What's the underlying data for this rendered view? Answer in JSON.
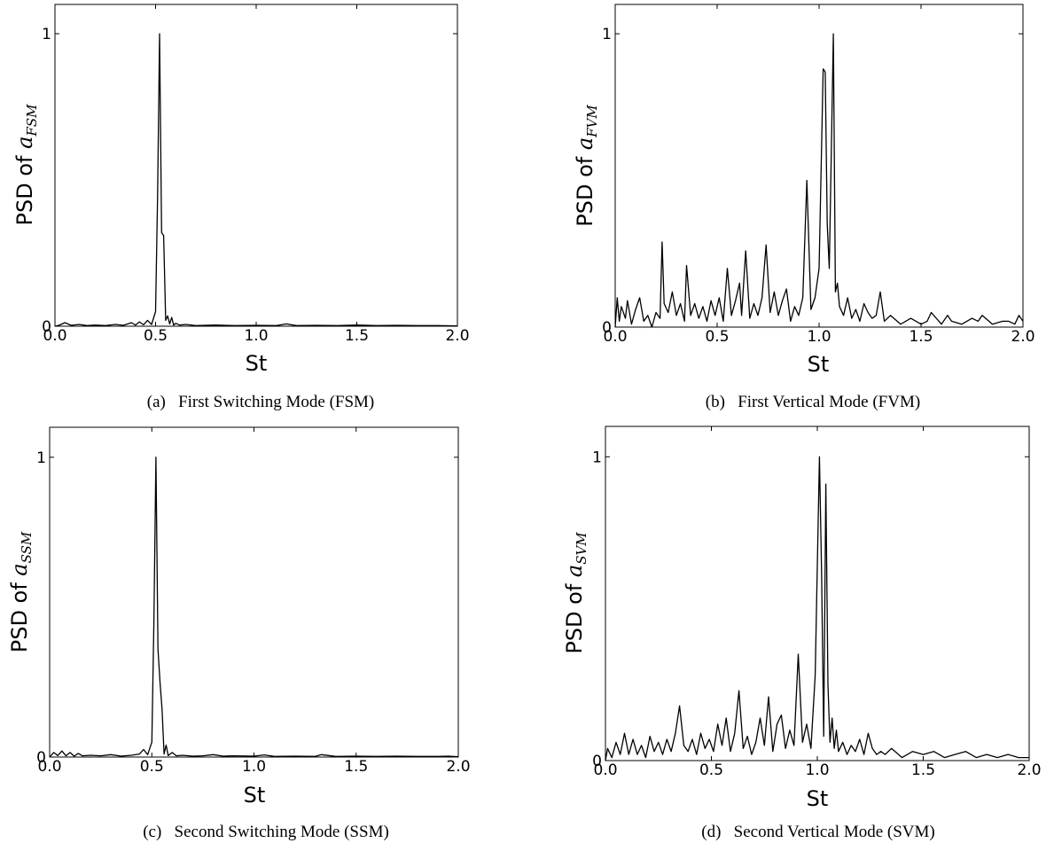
{
  "chart_data": [
    {
      "id": "a",
      "type": "line",
      "caption": "(a)   First Switching Mode (FSM)",
      "xlabel": "St",
      "ylabel_main": "PSD of ",
      "ylabel_var": "a",
      "ylabel_sub": "FSM",
      "xlim": [
        0.0,
        2.0
      ],
      "ylim": [
        0,
        1.1
      ],
      "xticks": [
        "0.0",
        "0.5",
        "1.0",
        "1.5",
        "2.0"
      ],
      "yticks": [
        "0",
        "1"
      ],
      "series": [
        {
          "x": [
            0.0,
            0.02,
            0.05,
            0.08,
            0.12,
            0.16,
            0.2,
            0.25,
            0.3,
            0.34,
            0.38,
            0.4,
            0.42,
            0.44,
            0.46,
            0.48,
            0.5,
            0.51,
            0.52,
            0.53,
            0.54,
            0.55,
            0.56,
            0.57,
            0.58,
            0.59,
            0.6,
            0.62,
            0.65,
            0.7,
            0.8,
            0.9,
            1.0,
            1.1,
            1.15,
            1.2,
            1.3,
            1.4,
            1.5,
            1.6,
            1.7,
            1.8,
            1.9,
            2.0
          ],
          "y": [
            0.0,
            0.003,
            0.012,
            0.003,
            0.006,
            0.002,
            0.004,
            0.002,
            0.006,
            0.003,
            0.012,
            0.004,
            0.015,
            0.005,
            0.02,
            0.006,
            0.05,
            0.45,
            1.0,
            0.32,
            0.31,
            0.02,
            0.035,
            0.008,
            0.03,
            0.004,
            0.01,
            0.004,
            0.006,
            0.002,
            0.004,
            0.002,
            0.003,
            0.002,
            0.008,
            0.002,
            0.003,
            0.002,
            0.004,
            0.002,
            0.003,
            0.002,
            0.002,
            0.001
          ]
        }
      ]
    },
    {
      "id": "b",
      "type": "line",
      "caption": "(b)   First Vertical Mode (FVM)",
      "xlabel": "St",
      "ylabel_main": "PSD of ",
      "ylabel_var": "a",
      "ylabel_sub": "FVM",
      "xlim": [
        0.0,
        2.0
      ],
      "ylim": [
        0,
        1.1
      ],
      "xticks": [
        "0.0",
        "0.5",
        "1.0",
        "1.5",
        "2.0"
      ],
      "yticks": [
        "0",
        "1"
      ],
      "series": [
        {
          "x": [
            0.0,
            0.01,
            0.02,
            0.03,
            0.05,
            0.06,
            0.08,
            0.1,
            0.12,
            0.14,
            0.16,
            0.18,
            0.2,
            0.22,
            0.23,
            0.24,
            0.26,
            0.28,
            0.3,
            0.32,
            0.34,
            0.35,
            0.37,
            0.39,
            0.41,
            0.43,
            0.45,
            0.47,
            0.49,
            0.51,
            0.53,
            0.55,
            0.57,
            0.59,
            0.61,
            0.62,
            0.64,
            0.66,
            0.68,
            0.7,
            0.72,
            0.74,
            0.76,
            0.78,
            0.8,
            0.82,
            0.84,
            0.86,
            0.88,
            0.9,
            0.92,
            0.94,
            0.96,
            0.98,
            1.0,
            1.02,
            1.03,
            1.04,
            1.05,
            1.06,
            1.07,
            1.08,
            1.09,
            1.1,
            1.12,
            1.14,
            1.16,
            1.18,
            1.2,
            1.22,
            1.24,
            1.26,
            1.28,
            1.3,
            1.32,
            1.35,
            1.4,
            1.45,
            1.5,
            1.53,
            1.55,
            1.6,
            1.63,
            1.65,
            1.7,
            1.75,
            1.78,
            1.8,
            1.85,
            1.9,
            1.93,
            1.96,
            1.98,
            2.0
          ],
          "y": [
            0.0,
            0.1,
            0.02,
            0.07,
            0.03,
            0.09,
            0.01,
            0.06,
            0.1,
            0.02,
            0.04,
            0.0,
            0.05,
            0.03,
            0.29,
            0.08,
            0.05,
            0.12,
            0.04,
            0.08,
            0.02,
            0.21,
            0.04,
            0.08,
            0.03,
            0.07,
            0.02,
            0.09,
            0.04,
            0.1,
            0.02,
            0.2,
            0.04,
            0.09,
            0.15,
            0.04,
            0.26,
            0.03,
            0.08,
            0.04,
            0.1,
            0.28,
            0.05,
            0.12,
            0.04,
            0.09,
            0.13,
            0.02,
            0.07,
            0.04,
            0.1,
            0.5,
            0.06,
            0.1,
            0.2,
            0.88,
            0.87,
            0.35,
            0.2,
            0.6,
            1.0,
            0.12,
            0.15,
            0.07,
            0.04,
            0.1,
            0.03,
            0.06,
            0.02,
            0.08,
            0.05,
            0.03,
            0.04,
            0.12,
            0.02,
            0.04,
            0.01,
            0.03,
            0.01,
            0.02,
            0.05,
            0.01,
            0.04,
            0.02,
            0.01,
            0.03,
            0.02,
            0.04,
            0.01,
            0.02,
            0.02,
            0.01,
            0.04,
            0.02
          ]
        }
      ]
    },
    {
      "id": "c",
      "type": "line",
      "caption": "(c)   Second Switching Mode (SSM)",
      "xlabel": "St",
      "ylabel_main": "PSD of ",
      "ylabel_var": "a",
      "ylabel_sub": "SSM",
      "xlim": [
        0.0,
        2.0
      ],
      "ylim": [
        0,
        1.1
      ],
      "xticks": [
        "0.0",
        "0.5",
        "1.0",
        "1.5",
        "2.0"
      ],
      "yticks": [
        "0",
        "1"
      ],
      "series": [
        {
          "x": [
            0.0,
            0.02,
            0.04,
            0.06,
            0.08,
            0.1,
            0.12,
            0.14,
            0.16,
            0.2,
            0.25,
            0.3,
            0.35,
            0.4,
            0.44,
            0.46,
            0.48,
            0.5,
            0.51,
            0.52,
            0.53,
            0.54,
            0.55,
            0.56,
            0.57,
            0.58,
            0.6,
            0.62,
            0.65,
            0.7,
            0.75,
            0.8,
            0.85,
            0.9,
            1.0,
            1.05,
            1.1,
            1.2,
            1.3,
            1.33,
            1.4,
            1.5,
            1.6,
            1.7,
            1.8,
            1.9,
            1.95,
            2.0
          ],
          "y": [
            0.0,
            0.015,
            0.005,
            0.02,
            0.004,
            0.015,
            0.003,
            0.012,
            0.004,
            0.006,
            0.004,
            0.008,
            0.003,
            0.006,
            0.01,
            0.025,
            0.008,
            0.05,
            0.45,
            1.0,
            0.36,
            0.25,
            0.16,
            0.01,
            0.04,
            0.005,
            0.015,
            0.004,
            0.006,
            0.003,
            0.004,
            0.008,
            0.003,
            0.004,
            0.003,
            0.007,
            0.002,
            0.003,
            0.002,
            0.008,
            0.002,
            0.003,
            0.002,
            0.003,
            0.002,
            0.002,
            0.003,
            0.001
          ]
        }
      ]
    },
    {
      "id": "d",
      "type": "line",
      "caption": "(d)   Second Vertical Mode (SVM)",
      "xlabel": "St",
      "ylabel_main": "PSD of ",
      "ylabel_var": "a",
      "ylabel_sub": "SVM",
      "xlim": [
        0.0,
        2.0
      ],
      "ylim": [
        0,
        1.1
      ],
      "xticks": [
        "0.0",
        "0.5",
        "1.0",
        "1.5",
        "2.0"
      ],
      "yticks": [
        "0",
        "1"
      ],
      "series": [
        {
          "x": [
            0.0,
            0.01,
            0.03,
            0.05,
            0.07,
            0.09,
            0.11,
            0.13,
            0.15,
            0.17,
            0.19,
            0.21,
            0.23,
            0.25,
            0.27,
            0.29,
            0.31,
            0.33,
            0.35,
            0.37,
            0.39,
            0.41,
            0.43,
            0.45,
            0.47,
            0.49,
            0.51,
            0.53,
            0.55,
            0.57,
            0.59,
            0.61,
            0.63,
            0.65,
            0.67,
            0.69,
            0.71,
            0.73,
            0.75,
            0.77,
            0.79,
            0.81,
            0.83,
            0.85,
            0.87,
            0.89,
            0.91,
            0.93,
            0.95,
            0.97,
            0.99,
            1.01,
            1.02,
            1.03,
            1.04,
            1.05,
            1.06,
            1.07,
            1.08,
            1.09,
            1.1,
            1.12,
            1.14,
            1.16,
            1.18,
            1.2,
            1.22,
            1.24,
            1.26,
            1.28,
            1.3,
            1.32,
            1.35,
            1.4,
            1.45,
            1.5,
            1.55,
            1.6,
            1.65,
            1.7,
            1.75,
            1.8,
            1.85,
            1.9,
            1.95,
            2.0
          ],
          "y": [
            0.0,
            0.04,
            0.01,
            0.06,
            0.02,
            0.09,
            0.02,
            0.07,
            0.02,
            0.05,
            0.01,
            0.08,
            0.03,
            0.06,
            0.02,
            0.07,
            0.03,
            0.09,
            0.18,
            0.05,
            0.03,
            0.07,
            0.02,
            0.09,
            0.04,
            0.07,
            0.03,
            0.12,
            0.05,
            0.14,
            0.03,
            0.09,
            0.23,
            0.04,
            0.08,
            0.02,
            0.06,
            0.14,
            0.05,
            0.21,
            0.03,
            0.12,
            0.15,
            0.04,
            0.1,
            0.05,
            0.35,
            0.06,
            0.12,
            0.04,
            0.28,
            1.0,
            0.62,
            0.08,
            0.91,
            0.25,
            0.06,
            0.14,
            0.04,
            0.1,
            0.03,
            0.06,
            0.02,
            0.05,
            0.03,
            0.07,
            0.02,
            0.09,
            0.04,
            0.02,
            0.03,
            0.02,
            0.04,
            0.01,
            0.03,
            0.02,
            0.03,
            0.01,
            0.02,
            0.03,
            0.01,
            0.02,
            0.01,
            0.02,
            0.01,
            0.01
          ]
        }
      ]
    }
  ]
}
